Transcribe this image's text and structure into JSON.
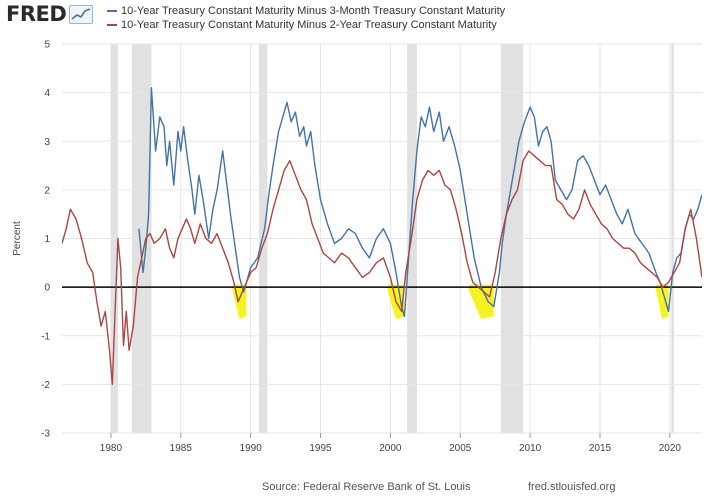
{
  "brand": {
    "logo_text": "FRED"
  },
  "legend": [
    {
      "label": "10-Year Treasury Constant Maturity Minus 3-Month Treasury Constant Maturity",
      "color": "#4572a7"
    },
    {
      "label": "10-Year Treasury Constant Maturity Minus 2-Year Treasury Constant Maturity",
      "color": "#aa4643"
    }
  ],
  "footer": {
    "source": "Source: Federal Reserve Bank of St. Louis",
    "site": "fred.stlouisfed.org"
  },
  "chart_data": {
    "type": "line",
    "title": "",
    "xlabel": "",
    "ylabel": "Percent",
    "xlim": [
      1976.5,
      2022.3
    ],
    "ylim": [
      -3,
      5
    ],
    "yticks": [
      -3,
      -2,
      -1,
      0,
      1,
      2,
      3,
      4,
      5
    ],
    "xticks": [
      1980,
      1985,
      1990,
      1995,
      2000,
      2005,
      2010,
      2015,
      2020
    ],
    "recessions": [
      [
        1980.0,
        1980.5
      ],
      [
        1981.5,
        1982.9
      ],
      [
        1990.6,
        1991.2
      ],
      [
        2001.2,
        2001.9
      ],
      [
        2007.9,
        2009.5
      ],
      [
        2020.1,
        2020.3
      ]
    ],
    "inversion_highlights": [
      [
        1988.7,
        1989.7
      ],
      [
        1999.8,
        2001.0
      ],
      [
        2005.6,
        2007.4
      ],
      [
        2019.0,
        2019.9
      ]
    ],
    "series": [
      {
        "name": "10-Year Treasury Constant Maturity Minus 3-Month Treasury Constant Maturity",
        "color": "#4572a7",
        "x": [
          1982.0,
          1982.3,
          1982.5,
          1982.7,
          1982.9,
          1983.2,
          1983.5,
          1983.8,
          1984.0,
          1984.2,
          1984.5,
          1984.8,
          1985.0,
          1985.2,
          1985.5,
          1985.8,
          1986.0,
          1986.3,
          1986.6,
          1987.0,
          1987.3,
          1987.6,
          1988.0,
          1988.3,
          1988.6,
          1988.9,
          1989.2,
          1989.5,
          1989.8,
          1990.0,
          1990.5,
          1991.0,
          1991.3,
          1991.6,
          1992.0,
          1992.3,
          1992.6,
          1992.9,
          1993.2,
          1993.5,
          1993.8,
          1994.0,
          1994.3,
          1994.6,
          1995.0,
          1995.5,
          1996.0,
          1996.5,
          1997.0,
          1997.5,
          1998.0,
          1998.5,
          1999.0,
          1999.5,
          2000.0,
          2000.4,
          2000.8,
          2001.0,
          2001.3,
          2001.6,
          2001.9,
          2002.2,
          2002.5,
          2002.8,
          2003.1,
          2003.5,
          2003.8,
          2004.2,
          2004.6,
          2005.0,
          2005.5,
          2006.0,
          2006.5,
          2007.0,
          2007.4,
          2007.8,
          2008.0,
          2008.3,
          2008.6,
          2008.9,
          2009.2,
          2009.6,
          2010.0,
          2010.3,
          2010.6,
          2010.9,
          2011.2,
          2011.5,
          2011.8,
          2012.2,
          2012.6,
          2013.0,
          2013.4,
          2013.8,
          2014.2,
          2014.6,
          2015.0,
          2015.4,
          2015.8,
          2016.2,
          2016.6,
          2017.0,
          2017.5,
          2018.0,
          2018.5,
          2019.0,
          2019.3,
          2019.6,
          2019.9,
          2020.2,
          2020.5,
          2020.8,
          2021.1,
          2021.4,
          2021.7,
          2022.0,
          2022.3
        ],
        "y": [
          1.2,
          0.3,
          0.8,
          1.5,
          4.1,
          2.8,
          3.5,
          3.3,
          2.5,
          3.0,
          2.1,
          3.2,
          2.8,
          3.3,
          2.6,
          2.0,
          1.5,
          2.3,
          1.8,
          1.0,
          1.6,
          2.0,
          2.8,
          2.1,
          1.4,
          0.8,
          0.2,
          -0.1,
          0.2,
          0.4,
          0.6,
          1.2,
          1.9,
          2.5,
          3.2,
          3.5,
          3.8,
          3.4,
          3.6,
          3.1,
          3.3,
          2.9,
          3.2,
          2.5,
          1.8,
          1.3,
          0.9,
          1.0,
          1.2,
          1.1,
          0.8,
          0.6,
          1.0,
          1.2,
          0.9,
          0.3,
          -0.4,
          -0.6,
          0.6,
          1.8,
          2.8,
          3.5,
          3.3,
          3.7,
          3.2,
          3.6,
          3.0,
          3.3,
          2.9,
          2.4,
          1.5,
          0.6,
          0.0,
          -0.3,
          -0.4,
          0.3,
          0.9,
          1.5,
          2.0,
          2.5,
          3.0,
          3.4,
          3.7,
          3.5,
          2.9,
          3.2,
          3.3,
          3.0,
          2.2,
          2.0,
          1.8,
          2.0,
          2.6,
          2.7,
          2.5,
          2.2,
          1.9,
          2.1,
          1.8,
          1.5,
          1.3,
          1.6,
          1.1,
          0.9,
          0.7,
          0.3,
          0.1,
          -0.2,
          -0.5,
          0.3,
          0.6,
          0.7,
          1.2,
          1.5,
          1.4,
          1.6,
          1.9
        ]
      },
      {
        "name": "10-Year Treasury Constant Maturity Minus 2-Year Treasury Constant Maturity",
        "color": "#aa4643",
        "x": [
          1976.5,
          1976.8,
          1977.1,
          1977.5,
          1977.9,
          1978.3,
          1978.7,
          1979.0,
          1979.3,
          1979.6,
          1979.9,
          1980.1,
          1980.3,
          1980.5,
          1980.7,
          1980.9,
          1981.1,
          1981.3,
          1981.6,
          1981.9,
          1982.2,
          1982.5,
          1982.8,
          1983.1,
          1983.5,
          1983.9,
          1984.2,
          1984.5,
          1984.8,
          1985.1,
          1985.4,
          1985.7,
          1986.0,
          1986.4,
          1986.8,
          1987.2,
          1987.6,
          1988.0,
          1988.4,
          1988.8,
          1989.1,
          1989.4,
          1989.7,
          1990.0,
          1990.4,
          1990.8,
          1991.2,
          1991.6,
          1992.0,
          1992.4,
          1992.8,
          1993.2,
          1993.6,
          1994.0,
          1994.4,
          1994.8,
          1995.2,
          1995.6,
          1996.0,
          1996.5,
          1997.0,
          1997.5,
          1998.0,
          1998.5,
          1999.0,
          1999.5,
          2000.0,
          2000.4,
          2000.8,
          2001.1,
          2001.5,
          2001.9,
          2002.3,
          2002.7,
          2003.1,
          2003.5,
          2003.9,
          2004.3,
          2004.7,
          2005.1,
          2005.5,
          2005.9,
          2006.3,
          2006.7,
          2007.1,
          2007.5,
          2007.9,
          2008.3,
          2008.7,
          2009.1,
          2009.5,
          2009.9,
          2010.3,
          2010.7,
          2011.1,
          2011.5,
          2011.9,
          2012.3,
          2012.7,
          2013.1,
          2013.5,
          2013.9,
          2014.3,
          2014.7,
          2015.1,
          2015.5,
          2015.9,
          2016.3,
          2016.7,
          2017.1,
          2017.5,
          2017.9,
          2018.3,
          2018.7,
          2019.1,
          2019.5,
          2019.9,
          2020.3,
          2020.7,
          2021.1,
          2021.5,
          2021.9,
          2022.3
        ],
        "y": [
          0.9,
          1.2,
          1.6,
          1.4,
          1.0,
          0.5,
          0.3,
          -0.3,
          -0.8,
          -0.5,
          -1.3,
          -2.0,
          -0.5,
          1.0,
          0.4,
          -1.2,
          -0.5,
          -1.3,
          -0.8,
          0.2,
          0.6,
          1.0,
          1.1,
          0.9,
          1.0,
          1.2,
          0.8,
          0.6,
          1.0,
          1.2,
          1.4,
          1.2,
          0.9,
          1.3,
          1.0,
          0.9,
          1.1,
          0.8,
          0.5,
          0.1,
          -0.3,
          -0.1,
          0.1,
          0.3,
          0.4,
          0.8,
          1.1,
          1.6,
          2.0,
          2.4,
          2.6,
          2.3,
          2.0,
          1.8,
          1.3,
          1.0,
          0.7,
          0.6,
          0.5,
          0.7,
          0.6,
          0.4,
          0.2,
          0.3,
          0.5,
          0.6,
          0.2,
          -0.3,
          -0.5,
          0.3,
          1.0,
          1.8,
          2.2,
          2.4,
          2.3,
          2.4,
          2.1,
          2.0,
          1.6,
          1.1,
          0.5,
          0.1,
          0.0,
          -0.1,
          -0.2,
          0.3,
          1.0,
          1.5,
          1.8,
          2.0,
          2.6,
          2.8,
          2.7,
          2.6,
          2.5,
          2.5,
          1.8,
          1.7,
          1.5,
          1.4,
          1.6,
          2.0,
          1.7,
          1.5,
          1.3,
          1.2,
          1.0,
          0.9,
          0.8,
          0.8,
          0.7,
          0.5,
          0.4,
          0.3,
          0.2,
          0.0,
          0.1,
          0.3,
          0.5,
          1.2,
          1.6,
          1.0,
          0.2
        ]
      }
    ]
  }
}
